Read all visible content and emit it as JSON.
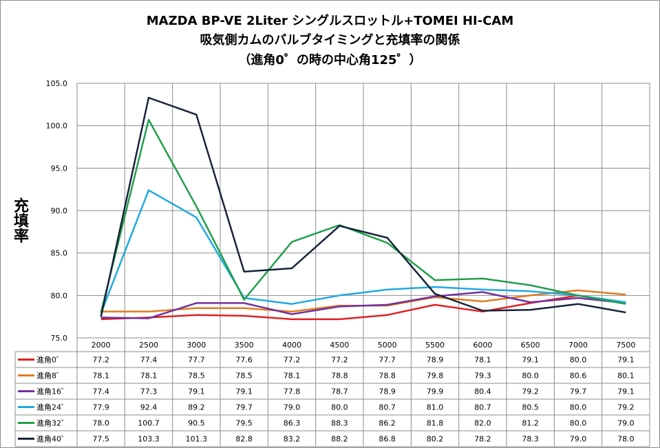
{
  "chart_data": {
    "type": "line",
    "title": [
      "MAZDA BP-VE 2Liter シングルスロットル+TOMEI HI-CAM",
      "吸気側カムのバルブタイミングと充填率の関係",
      "（進角0゜の時の中心角125゜）"
    ],
    "ylabel": "充填率",
    "xlabel": "",
    "ylim": [
      75.0,
      105.0
    ],
    "yticks": [
      "75.0",
      "80.0",
      "85.0",
      "90.0",
      "95.0",
      "100.0",
      "105.0"
    ],
    "grid": true,
    "legend": "data-table",
    "x": [
      "2000",
      "2500",
      "3000",
      "3500",
      "4000",
      "4500",
      "5000",
      "5500",
      "6000",
      "6500",
      "7000",
      "7500"
    ],
    "series": [
      {
        "name": "進角0゜",
        "color": "#e02020",
        "values": [
          77.2,
          77.4,
          77.7,
          77.6,
          77.2,
          77.2,
          77.7,
          78.9,
          78.1,
          79.1,
          80.0,
          79.1
        ]
      },
      {
        "name": "進角8゜",
        "color": "#e07b20",
        "values": [
          78.1,
          78.1,
          78.5,
          78.5,
          78.1,
          78.8,
          78.8,
          79.8,
          79.3,
          80.0,
          80.6,
          80.1
        ]
      },
      {
        "name": "進角16゜",
        "color": "#7030a0",
        "values": [
          77.4,
          77.3,
          79.1,
          79.1,
          77.8,
          78.7,
          78.9,
          79.9,
          80.4,
          79.2,
          79.7,
          79.1
        ]
      },
      {
        "name": "進角24゜",
        "color": "#1fa9e0",
        "values": [
          77.9,
          92.4,
          89.2,
          79.7,
          79.0,
          80.0,
          80.7,
          81.0,
          80.7,
          80.5,
          80.0,
          79.2
        ]
      },
      {
        "name": "進角32゜",
        "color": "#1f9e4a",
        "values": [
          78.0,
          100.7,
          90.5,
          79.5,
          86.3,
          88.3,
          86.2,
          81.8,
          82.0,
          81.2,
          80.0,
          79.0
        ]
      },
      {
        "name": "進角40゜",
        "color": "#17223a",
        "values": [
          77.5,
          103.3,
          101.3,
          82.8,
          83.2,
          88.2,
          86.8,
          80.2,
          78.2,
          78.3,
          79.0,
          78.0
        ]
      }
    ]
  }
}
